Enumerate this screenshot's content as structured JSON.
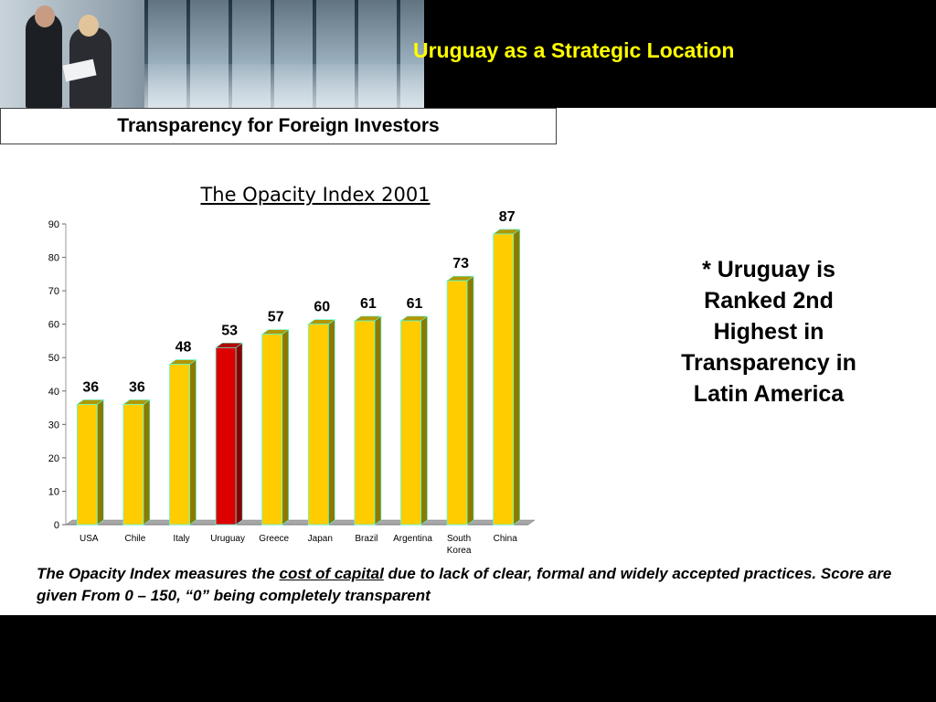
{
  "header": {
    "title": "Uruguay as a Strategic Location"
  },
  "subtitle": "Transparency for Foreign Investors",
  "side_note": "*  Uruguay is Ranked 2nd Highest in Transparency in Latin America",
  "footnote": {
    "part1": "The Opacity Index measures the ",
    "link": "cost of capital",
    "part2": " due to lack of clear, formal and widely accepted practices.   Score are given From 0 – 150, “0” being completely transparent"
  },
  "colors": {
    "bar": "#ffcc00",
    "highlight": "#dd0000",
    "title": "#ffff00"
  },
  "chart_data": {
    "type": "bar",
    "title": "The Opacity Index 2001",
    "categories": [
      "USA",
      "Chile",
      "Italy",
      "Uruguay",
      "Greece",
      "Japan",
      "Brazil",
      "Argentina",
      "South Korea",
      "China"
    ],
    "values": [
      36,
      36,
      48,
      53,
      57,
      60,
      61,
      61,
      73,
      87
    ],
    "highlight": "Uruguay",
    "ylim": [
      0,
      90
    ],
    "yticks": [
      0,
      10,
      20,
      30,
      40,
      50,
      60,
      70,
      80,
      90
    ],
    "grid": false,
    "data_labels": true
  }
}
